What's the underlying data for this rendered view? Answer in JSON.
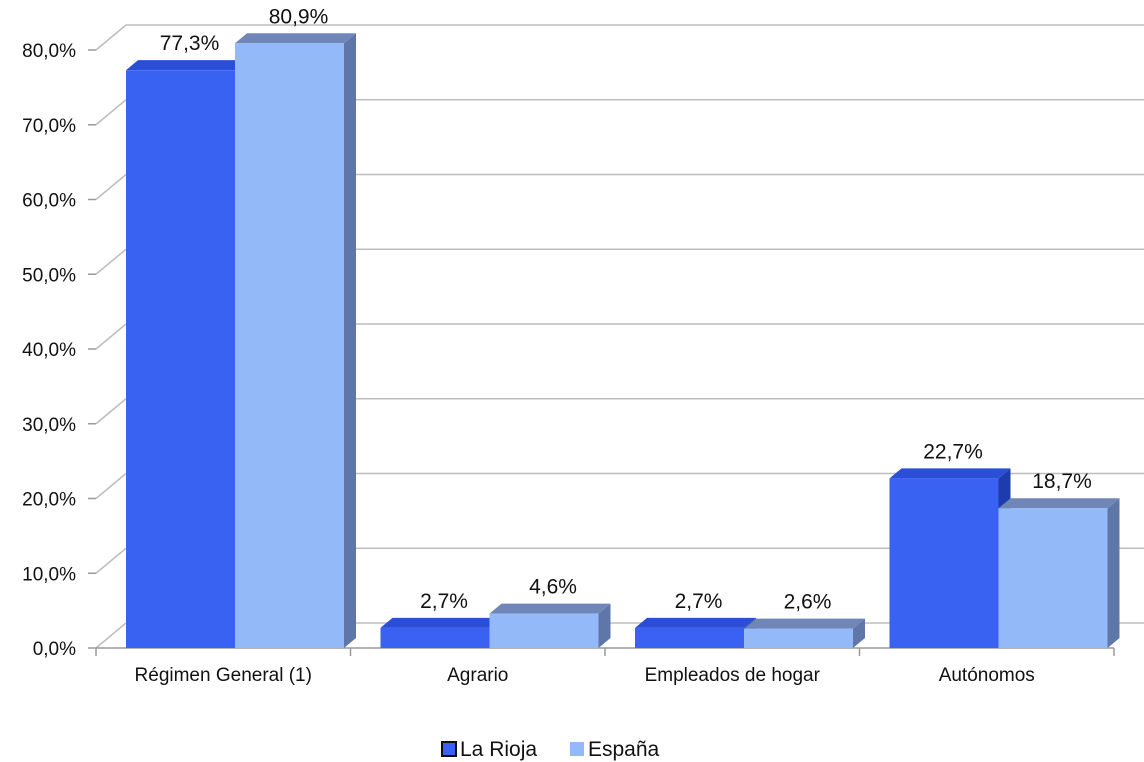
{
  "chart_data": {
    "type": "bar",
    "categories": [
      "Régimen General (1)",
      "Agrario",
      "Empleados de hogar",
      "Autónomos"
    ],
    "series": [
      {
        "name": "La Rioja",
        "values": [
          77.3,
          2.7,
          2.7,
          22.7
        ],
        "labels": [
          "77,3%",
          "2,7%",
          "2,7%",
          "22,7%"
        ],
        "color": "#3a62f2"
      },
      {
        "name": "España",
        "values": [
          80.9,
          4.6,
          2.6,
          18.7
        ],
        "labels": [
          "80,9%",
          "4,6%",
          "2,6%",
          "18,7%"
        ],
        "color": "#93b9f8"
      }
    ],
    "yticks": [
      "0,0%",
      "10,0%",
      "20,0%",
      "30,0%",
      "40,0%",
      "50,0%",
      "60,0%",
      "70,0%",
      "80,0%"
    ],
    "ylim": [
      0,
      80
    ],
    "grid": true,
    "legend": "bottom-center",
    "style": "3d-clustered-column"
  }
}
